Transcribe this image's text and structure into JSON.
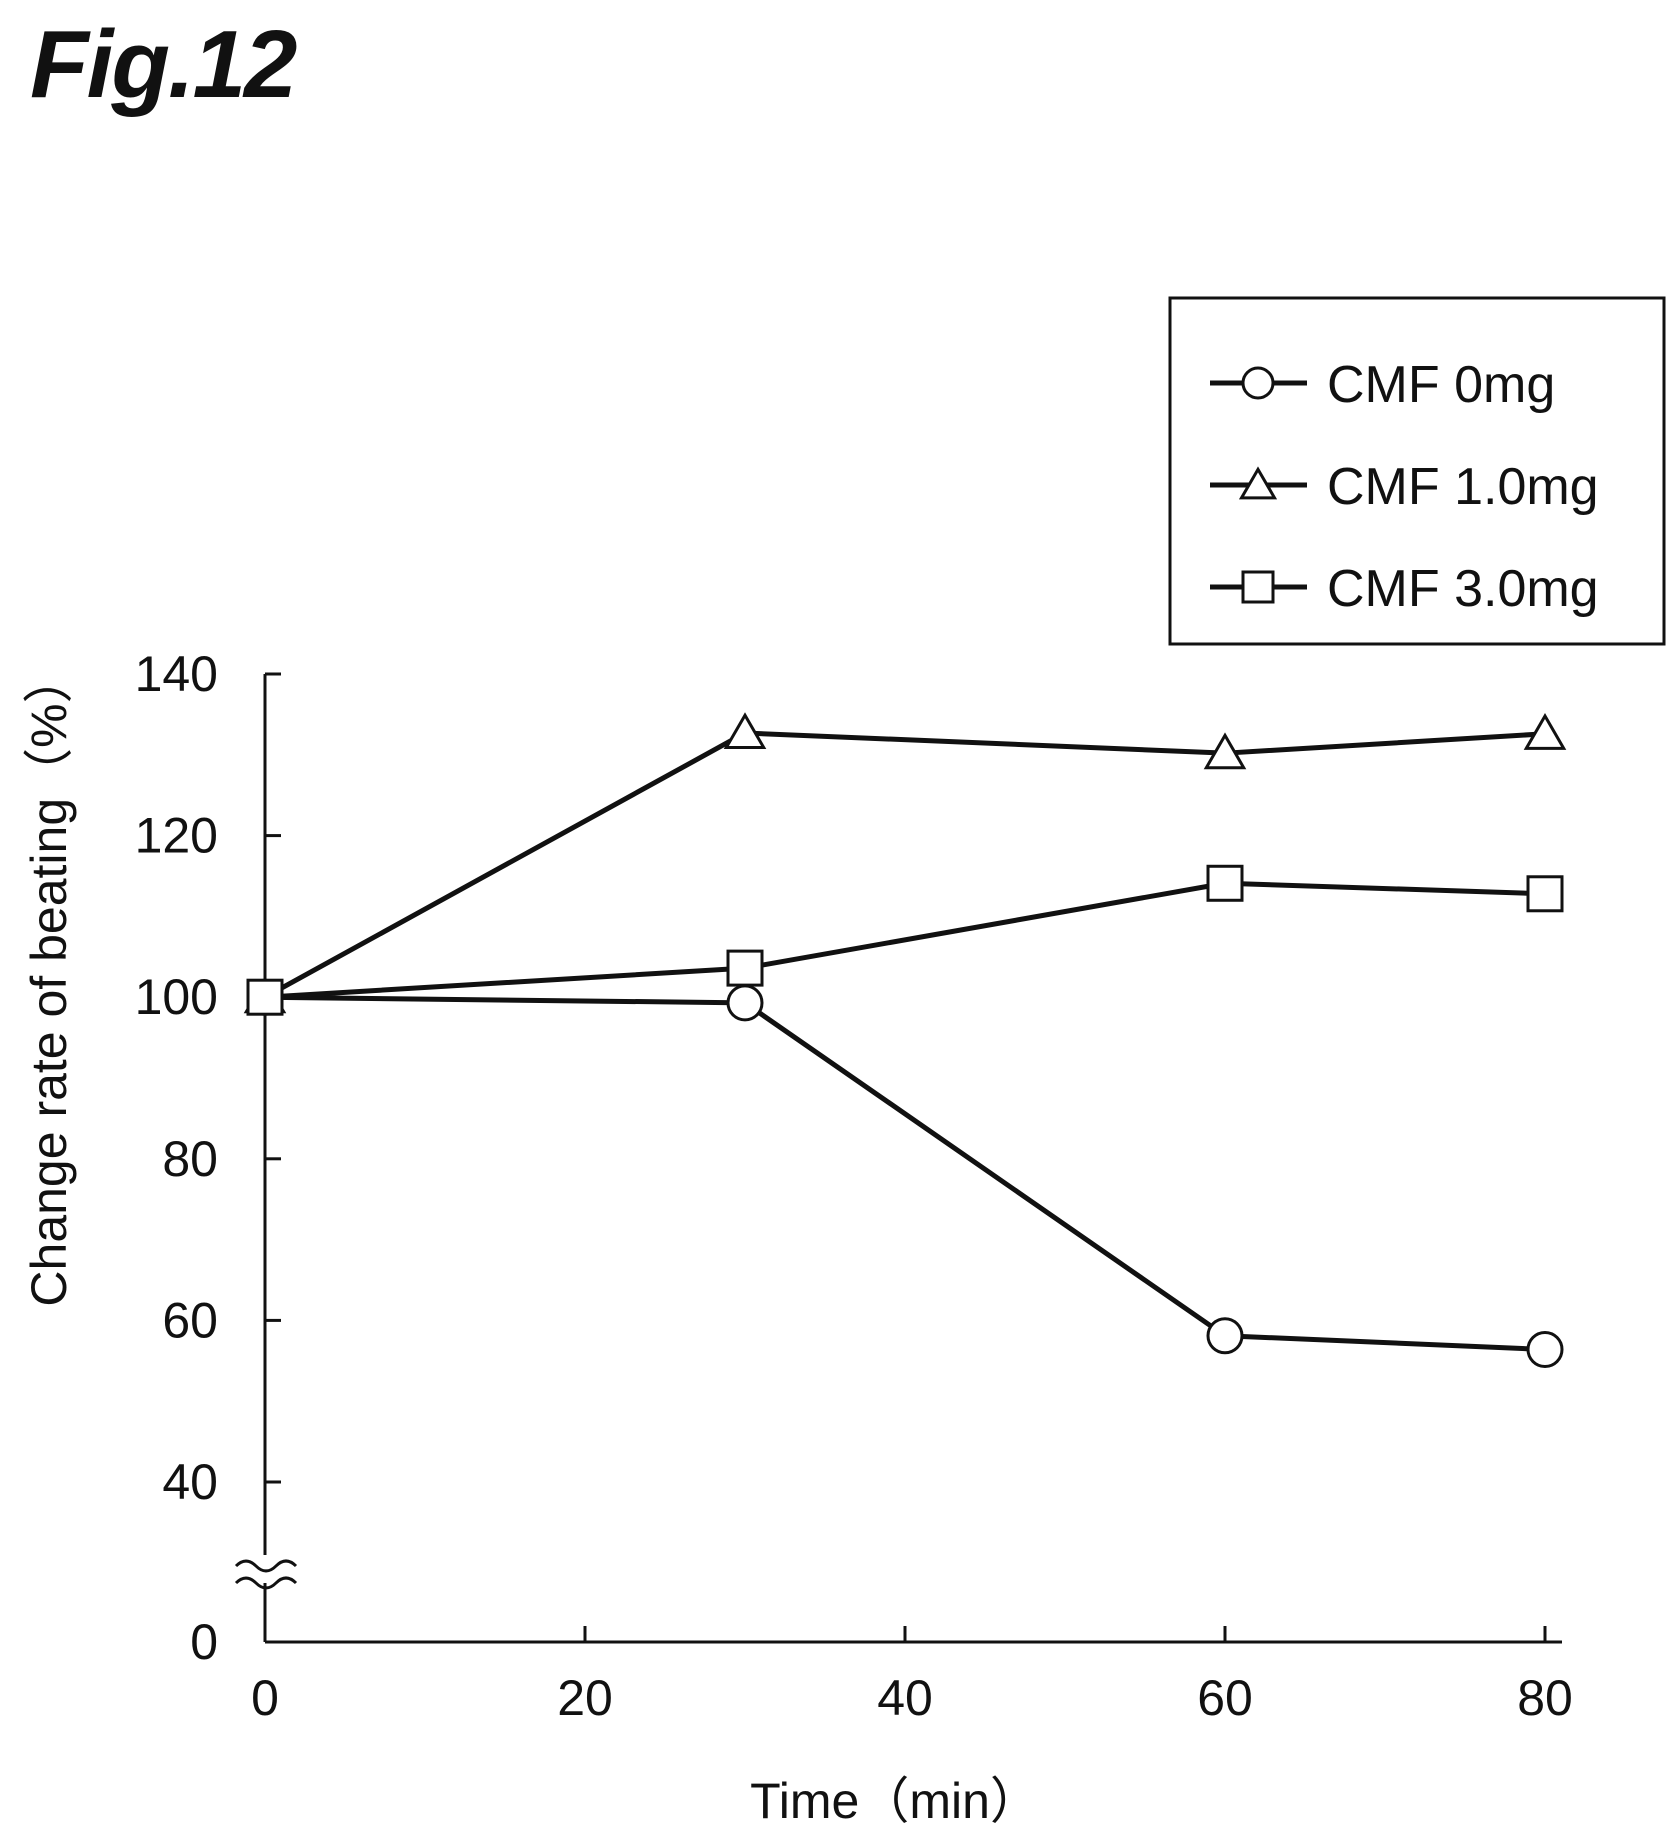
{
  "figure_label": "Fig.12",
  "chart_data": {
    "type": "line",
    "xlabel": "Time（min）",
    "ylabel": "Change rate of beating（%）",
    "xlim": [
      0,
      80
    ],
    "ylim": [
      0,
      140
    ],
    "y_axis_break": [
      0,
      40
    ],
    "x_ticks": [
      0,
      20,
      40,
      60,
      80
    ],
    "y_ticks": [
      0,
      40,
      60,
      80,
      100,
      120,
      140
    ],
    "grid": false,
    "legend_position": "top-right",
    "line_color": "#111111",
    "series": [
      {
        "name": "CMF 0mg",
        "marker": "circle",
        "x": [
          0,
          30,
          60,
          80
        ],
        "y": [
          100,
          99.3,
          58.1,
          56.4
        ]
      },
      {
        "name": "CMF 1.0mg",
        "marker": "triangle",
        "x": [
          0,
          30,
          60,
          80
        ],
        "y": [
          100,
          132.7,
          130.2,
          132.6
        ]
      },
      {
        "name": "CMF 3.0mg",
        "marker": "square",
        "x": [
          0,
          30,
          60,
          80
        ],
        "y": [
          100,
          103.6,
          114.1,
          112.8
        ]
      }
    ]
  }
}
